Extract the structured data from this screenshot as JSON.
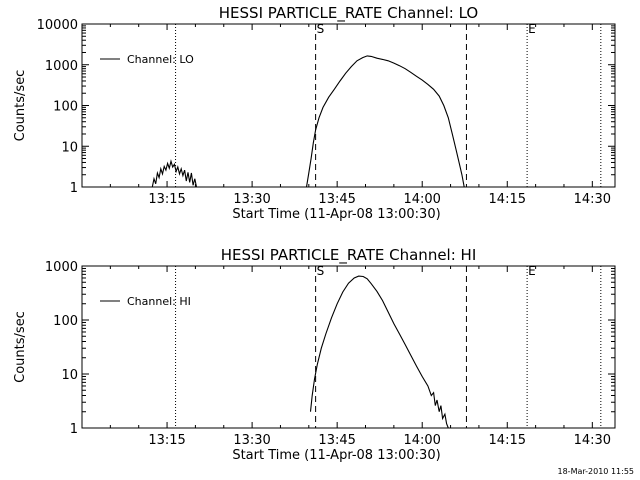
{
  "footer": {
    "timestamp": "18-Mar-2010 11:55"
  },
  "chart_data": [
    {
      "type": "line",
      "title": "HESSI PARTICLE_RATE Channel: LO",
      "xlabel": "Start Time (11-Apr-08 13:00:30)",
      "ylabel": "Counts/sec",
      "y_scale": "log",
      "xlim": [
        0,
        94
      ],
      "ylim": [
        1,
        10000
      ],
      "x_ticks": [
        {
          "value": 15,
          "label": "13:15"
        },
        {
          "value": 30,
          "label": "13:30"
        },
        {
          "value": 45,
          "label": "13:45"
        },
        {
          "value": 60,
          "label": "14:00"
        },
        {
          "value": 75,
          "label": "14:15"
        },
        {
          "value": 90,
          "label": "14:30"
        }
      ],
      "y_ticks": [
        {
          "value": 1,
          "label": "1"
        },
        {
          "value": 10,
          "label": "10"
        },
        {
          "value": 100,
          "label": "100"
        },
        {
          "value": 1000,
          "label": "1000"
        },
        {
          "value": 10000,
          "label": "10000"
        }
      ],
      "legend": {
        "position": "top-left",
        "entries": [
          "Channel: LO"
        ]
      },
      "markers": [
        {
          "value": 16.5,
          "style": "dotted",
          "label": ""
        },
        {
          "value": 41.2,
          "style": "dashed",
          "label": "S"
        },
        {
          "value": 67.8,
          "style": "dashed",
          "label": ""
        },
        {
          "value": 78.5,
          "style": "dotted",
          "label": "E"
        },
        {
          "value": 91.5,
          "style": "dotted",
          "label": ""
        }
      ],
      "series": [
        {
          "name": "Channel: LO",
          "segments": [
            [
              [
                12.4,
                1
              ],
              [
                12.7,
                1.6
              ],
              [
                13.0,
                1.2
              ],
              [
                13.3,
                2.2
              ],
              [
                13.6,
                1.7
              ],
              [
                13.9,
                2.8
              ],
              [
                14.2,
                2.1
              ],
              [
                14.5,
                3.2
              ],
              [
                14.8,
                2.6
              ],
              [
                15.1,
                3.8
              ],
              [
                15.4,
                2.9
              ],
              [
                15.7,
                4.3
              ],
              [
                16.0,
                3.1
              ],
              [
                16.3,
                3.6
              ],
              [
                16.6,
                2.4
              ],
              [
                16.9,
                3.1
              ],
              [
                17.2,
                2.1
              ],
              [
                17.5,
                2.8
              ],
              [
                17.8,
                1.9
              ],
              [
                18.1,
                2.6
              ],
              [
                18.4,
                1.4
              ],
              [
                18.7,
                2.3
              ],
              [
                19.0,
                1.3
              ],
              [
                19.3,
                2.2
              ],
              [
                19.6,
                1.1
              ],
              [
                19.9,
                1.6
              ],
              [
                20.2,
                1
              ]
            ],
            [
              [
                39.6,
                1
              ],
              [
                40.0,
                2.2
              ],
              [
                40.4,
                5
              ],
              [
                40.8,
                12
              ],
              [
                41.2,
                25
              ],
              [
                41.8,
                50
              ],
              [
                42.5,
                90
              ],
              [
                43.5,
                160
              ],
              [
                44.5,
                250
              ],
              [
                45.5,
                400
              ],
              [
                46.5,
                620
              ],
              [
                47.5,
                900
              ],
              [
                48.5,
                1250
              ],
              [
                49.5,
                1500
              ],
              [
                50.3,
                1650
              ],
              [
                51.0,
                1600
              ],
              [
                52.0,
                1450
              ],
              [
                53.0,
                1350
              ],
              [
                54.0,
                1250
              ],
              [
                55.0,
                1100
              ],
              [
                56.0,
                950
              ],
              [
                57.0,
                800
              ],
              [
                58.0,
                650
              ],
              [
                59.0,
                520
              ],
              [
                60.0,
                420
              ],
              [
                61.0,
                330
              ],
              [
                62.0,
                250
              ],
              [
                63.0,
                170
              ],
              [
                63.8,
                100
              ],
              [
                64.6,
                50
              ],
              [
                65.3,
                20
              ],
              [
                66.0,
                8
              ],
              [
                66.6,
                3.5
              ],
              [
                67.0,
                2
              ],
              [
                67.4,
                1
              ]
            ]
          ]
        }
      ]
    },
    {
      "type": "line",
      "title": "HESSI PARTICLE_RATE Channel: HI",
      "xlabel": "Start Time (11-Apr-08 13:00:30)",
      "ylabel": "Counts/sec",
      "y_scale": "log",
      "xlim": [
        0,
        94
      ],
      "ylim": [
        1,
        1000
      ],
      "x_ticks": [
        {
          "value": 15,
          "label": "13:15"
        },
        {
          "value": 30,
          "label": "13:30"
        },
        {
          "value": 45,
          "label": "13:45"
        },
        {
          "value": 60,
          "label": "14:00"
        },
        {
          "value": 75,
          "label": "14:15"
        },
        {
          "value": 90,
          "label": "14:30"
        }
      ],
      "y_ticks": [
        {
          "value": 1,
          "label": "1"
        },
        {
          "value": 10,
          "label": "10"
        },
        {
          "value": 100,
          "label": "100"
        },
        {
          "value": 1000,
          "label": "1000"
        }
      ],
      "legend": {
        "position": "top-left",
        "entries": [
          "Channel: HI"
        ]
      },
      "markers": [
        {
          "value": 16.5,
          "style": "dotted",
          "label": ""
        },
        {
          "value": 41.2,
          "style": "dashed",
          "label": "S"
        },
        {
          "value": 67.8,
          "style": "dashed",
          "label": ""
        },
        {
          "value": 78.5,
          "style": "dotted",
          "label": "E"
        },
        {
          "value": 91.5,
          "style": "dotted",
          "label": ""
        }
      ],
      "series": [
        {
          "name": "Channel: HI",
          "segments": [
            [
              [
                40.3,
                2
              ],
              [
                40.6,
                4
              ],
              [
                41.0,
                8
              ],
              [
                41.5,
                15
              ],
              [
                42.2,
                30
              ],
              [
                43.0,
                55
              ],
              [
                44.0,
                110
              ],
              [
                45.0,
                200
              ],
              [
                46.0,
                330
              ],
              [
                47.0,
                480
              ],
              [
                48.0,
                600
              ],
              [
                48.8,
                650
              ],
              [
                49.6,
                640
              ],
              [
                50.3,
                580
              ],
              [
                51.0,
                470
              ],
              [
                52.0,
                340
              ],
              [
                53.0,
                230
              ],
              [
                54.0,
                140
              ],
              [
                55.0,
                85
              ],
              [
                56.0,
                55
              ],
              [
                57.0,
                35
              ],
              [
                58.0,
                22
              ],
              [
                59.0,
                14
              ],
              [
                60.0,
                9
              ],
              [
                61.0,
                6
              ],
              [
                61.6,
                4
              ],
              [
                62.0,
                4.5
              ],
              [
                62.3,
                2.6
              ],
              [
                62.6,
                3.3
              ],
              [
                63.0,
                2
              ],
              [
                63.3,
                2.6
              ],
              [
                63.6,
                1.5
              ],
              [
                64.0,
                1.8
              ],
              [
                64.3,
                1.2
              ],
              [
                64.6,
                1
              ]
            ]
          ]
        }
      ]
    }
  ]
}
